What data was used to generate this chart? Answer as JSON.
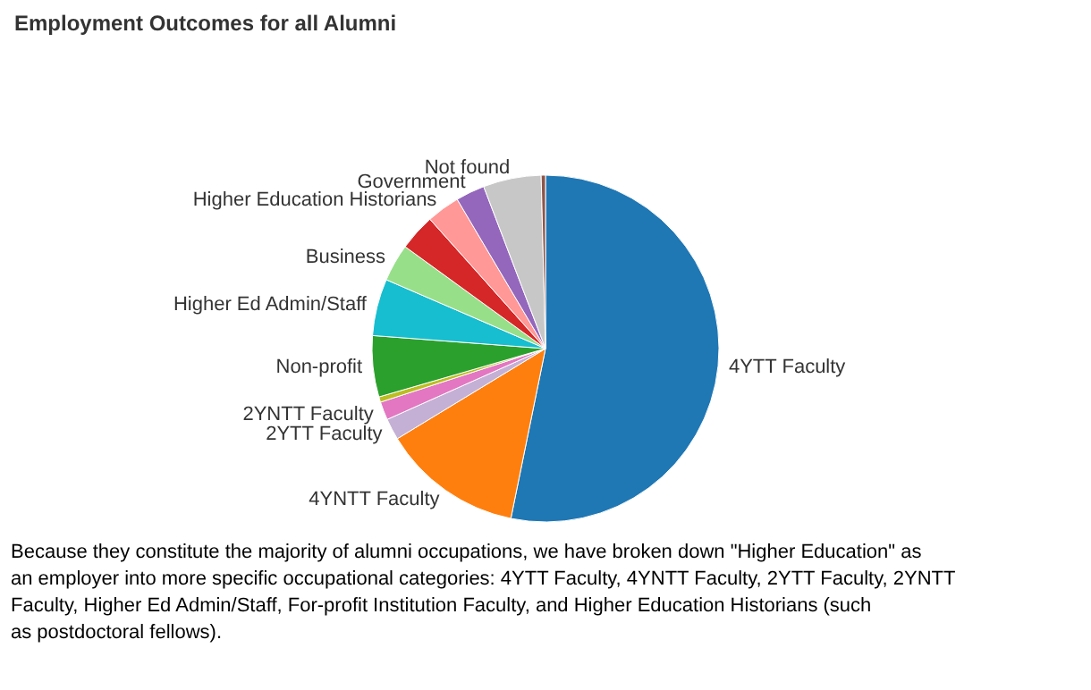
{
  "chart_data": {
    "type": "pie",
    "title": "Employment Outcomes for all Alumni",
    "categories": [
      "4YTT Faculty",
      "4YNTT Faculty",
      "2YTT Faculty",
      "2YNTT Faculty",
      null,
      "Non-profit",
      "Higher Ed Admin/Staff",
      "Business",
      null,
      "Higher Education Historians",
      "Government",
      "Not found",
      null
    ],
    "values": [
      53.2,
      13.1,
      2.0,
      1.7,
      0.5,
      5.7,
      5.3,
      3.5,
      3.4,
      3.1,
      2.7,
      5.4,
      0.4
    ],
    "colors": [
      "#1f77b4",
      "#ff7f0e",
      "#c5b0d5",
      "#e377c2",
      "#bcbd22",
      "#2ca02c",
      "#17becf",
      "#98df8a",
      "#d62728",
      "#ff9896",
      "#9467bd",
      "#c7c7c7",
      "#8c564b"
    ],
    "annotations": [
      "Because they constitute the majority of alumni occupations,  we have broken down \"Higher Education\" as an employer into more specific occupational categories: 4YTT Faculty, 4YNTT Faculty, 2YTT Faculty, 2YNTT Faculty, Higher Ed Admin/Staff,  For-profit Institution Faculty, and Higher Education Historians (such as postdoctoral fellows)."
    ]
  }
}
